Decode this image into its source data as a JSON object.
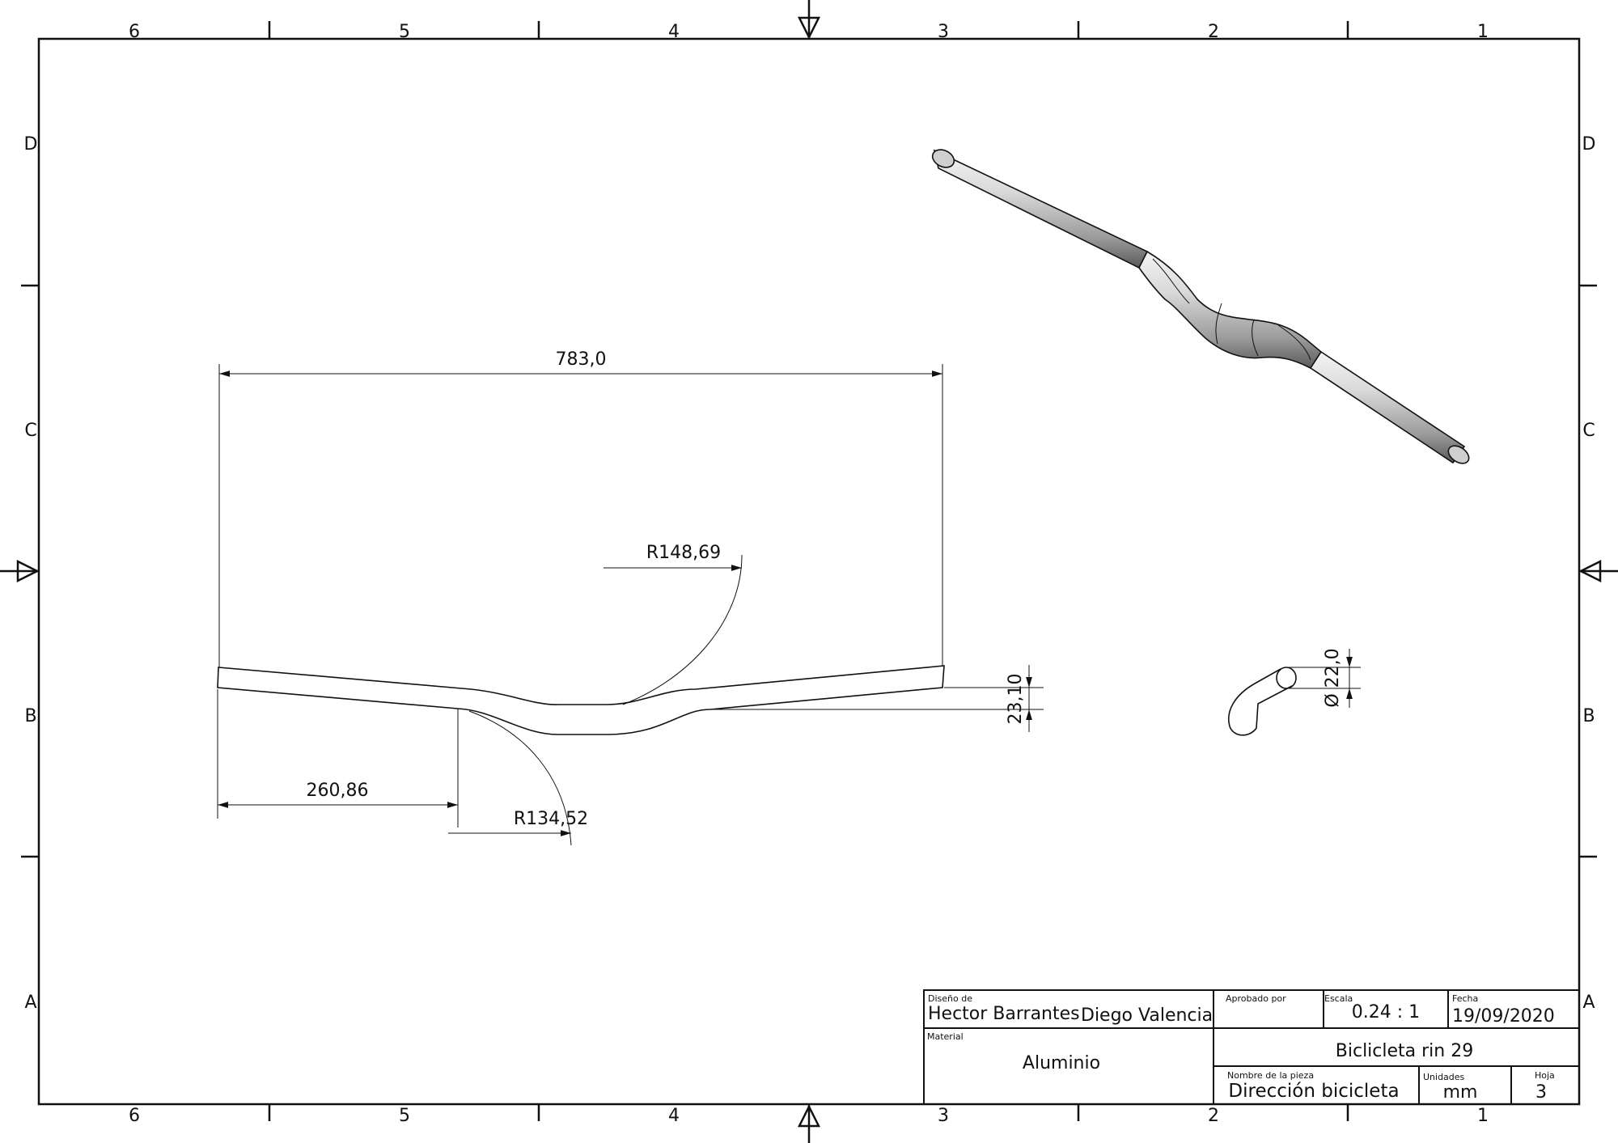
{
  "border": {
    "columns_top": [
      "6",
      "5",
      "4",
      "3",
      "2",
      "1"
    ],
    "columns_bottom": [
      "6",
      "5",
      "4",
      "3",
      "2",
      "1"
    ],
    "rows_left": [
      "D",
      "C",
      "B",
      "A"
    ],
    "rows_right": [
      "D",
      "C",
      "B",
      "A"
    ]
  },
  "front_view": {
    "dimensions": {
      "overall_width": "783,0",
      "left_section": "260,86",
      "radius_upper": "R148,69",
      "radius_lower": "R134,52",
      "rise": "23,10"
    }
  },
  "side_view": {
    "dimensions": {
      "diameter": "Ø 22,0"
    }
  },
  "title_block": {
    "design_label": "Diseño de",
    "designer_1": "Hector Barrantes",
    "designer_2": "Diego Valencia",
    "approved_label": "Aprobado por",
    "approved_value": "",
    "scale_label": "Escala",
    "scale_value": "0.24 : 1",
    "date_label": "Fecha",
    "date_value": "19/09/2020",
    "material_label": "Material",
    "material_value": "Aluminio",
    "project_title": "Biclicleta rin 29",
    "part_label": "Nombre de la pieza",
    "part_value": "Dirección bicicleta",
    "units_label": "Unidades",
    "units_value": "mm",
    "sheet_label": "Hoja",
    "sheet_value": "3"
  }
}
